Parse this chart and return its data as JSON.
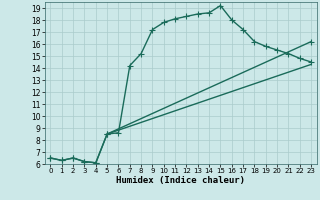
{
  "xlabel": "Humidex (Indice chaleur)",
  "bg_color": "#cce8e8",
  "grid_color": "#aacccc",
  "line_color": "#1a6b5a",
  "xlim": [
    -0.5,
    23.5
  ],
  "ylim": [
    6,
    19.5
  ],
  "xticks": [
    0,
    1,
    2,
    3,
    4,
    5,
    6,
    7,
    8,
    9,
    10,
    11,
    12,
    13,
    14,
    15,
    16,
    17,
    18,
    19,
    20,
    21,
    22,
    23
  ],
  "yticks": [
    6,
    7,
    8,
    9,
    10,
    11,
    12,
    13,
    14,
    15,
    16,
    17,
    18,
    19
  ],
  "line1_x": [
    0,
    1,
    2,
    3,
    4,
    5,
    6,
    7,
    8,
    9,
    10,
    11,
    12,
    13,
    14,
    15,
    16,
    17,
    18,
    19,
    20,
    21,
    22,
    23
  ],
  "line1_y": [
    6.5,
    6.3,
    6.5,
    6.2,
    6.1,
    8.5,
    8.6,
    14.2,
    15.2,
    17.2,
    17.8,
    18.1,
    18.3,
    18.5,
    18.6,
    19.2,
    18.0,
    17.2,
    16.2,
    15.8,
    15.5,
    15.2,
    14.8,
    14.5
  ],
  "line2_x": [
    0,
    1,
    2,
    3,
    4,
    5,
    23
  ],
  "line2_y": [
    6.5,
    6.3,
    6.5,
    6.2,
    6.1,
    8.5,
    16.2
  ],
  "line3_x": [
    5,
    23
  ],
  "line3_y": [
    8.5,
    14.3
  ],
  "linewidth": 1.0,
  "markersize": 4
}
